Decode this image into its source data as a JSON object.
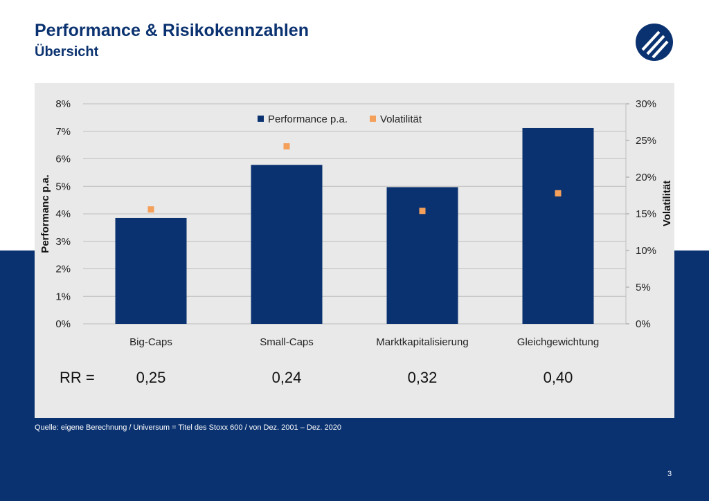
{
  "header": {
    "title": "Performance & Risikokennzahlen",
    "subtitle": "Übersicht"
  },
  "logo": {
    "icon": "company-logo-icon",
    "color": "#0b3270"
  },
  "colors": {
    "primary": "#0b3270",
    "bar": "#0b3270",
    "marker": "#f4a05b",
    "panel": "#e9e9e9"
  },
  "chart_data": {
    "type": "bar",
    "categories": [
      "Big-Caps",
      "Small-Caps",
      "Marktkapitalisierung",
      "Gleichgewichtung"
    ],
    "series": [
      {
        "name": "Performance p.a.",
        "type": "bar",
        "axis": "left",
        "values": [
          3.85,
          5.78,
          4.97,
          7.12
        ]
      },
      {
        "name": "Volatilität",
        "type": "scatter",
        "axis": "right",
        "values": [
          15.6,
          24.2,
          15.4,
          17.8
        ]
      }
    ],
    "ylabel": "Performanc p.a.",
    "ylabel_right": "Volatilität",
    "ylim": [
      0,
      8
    ],
    "ylim_right": [
      0,
      30
    ],
    "yticks": [
      "0%",
      "1%",
      "2%",
      "3%",
      "4%",
      "5%",
      "6%",
      "7%",
      "8%"
    ],
    "yticks_right": [
      "0%",
      "5%",
      "10%",
      "15%",
      "20%",
      "25%",
      "30%"
    ],
    "legend_position": "top-center",
    "grid": true
  },
  "rr": {
    "label": "RR =",
    "values": [
      "0,25",
      "0,24",
      "0,32",
      "0,40"
    ]
  },
  "footer": {
    "source": "Quelle: eigene Berechnung  / Universum  = Titel des Stoxx 600  / von  Dez. 2001 – Dez. 2020",
    "page_number": "3"
  }
}
